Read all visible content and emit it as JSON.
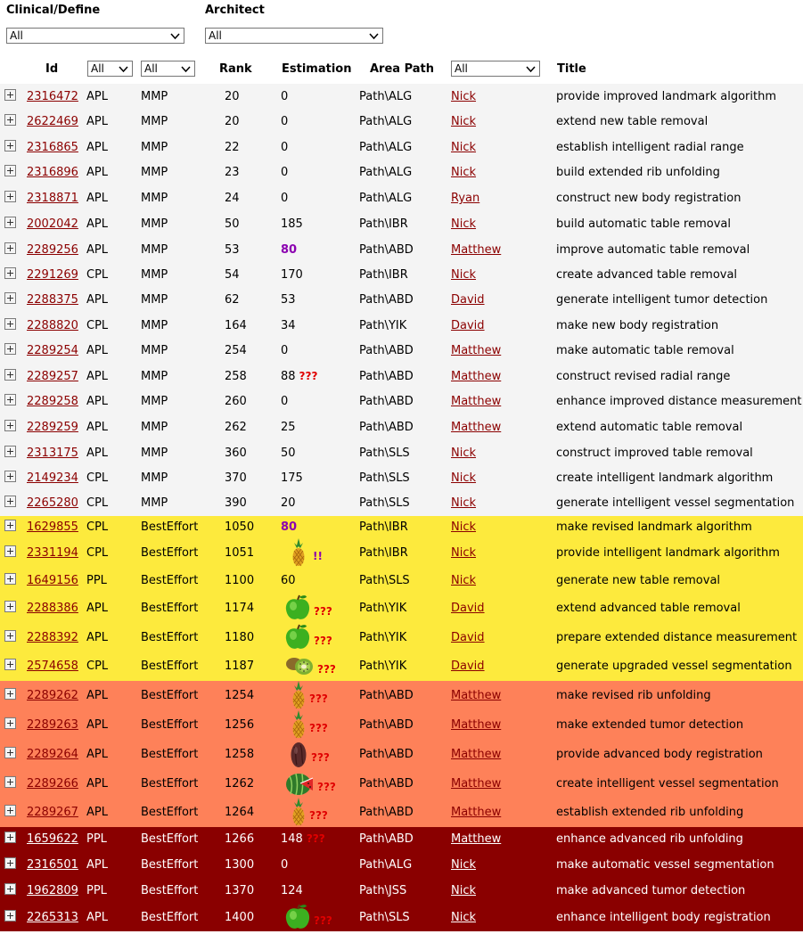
{
  "filters": {
    "clinical_label": "Clinical/Define",
    "clinical_value": "All",
    "architect_label": "Architect",
    "architect_value": "All",
    "group_value": "All",
    "type_value": "All",
    "arch_col_value": "All"
  },
  "columns": {
    "id": "Id",
    "rank": "Rank",
    "estimation": "Estimation",
    "area": "Area Path",
    "title": "Title"
  },
  "colors": {
    "gray": "#f4f4f4",
    "yellow": "#fdea3d",
    "orange": "#fe8159",
    "red": "#8a0000",
    "link": "#8b0000"
  },
  "rows": [
    {
      "id": "2316472",
      "grp": "APL",
      "type": "MMP",
      "rank": "20",
      "est": "0",
      "path": "Path\\ALG",
      "arch": "Nick",
      "title": "provide improved landmark algorithm",
      "band": "gray"
    },
    {
      "id": "2622469",
      "grp": "APL",
      "type": "MMP",
      "rank": "20",
      "est": "0",
      "path": "Path\\ALG",
      "arch": "Nick",
      "title": "extend new table removal",
      "band": "gray"
    },
    {
      "id": "2316865",
      "grp": "APL",
      "type": "MMP",
      "rank": "22",
      "est": "0",
      "path": "Path\\ALG",
      "arch": "Nick",
      "title": "establish intelligent radial range",
      "band": "gray"
    },
    {
      "id": "2316896",
      "grp": "APL",
      "type": "MMP",
      "rank": "23",
      "est": "0",
      "path": "Path\\ALG",
      "arch": "Nick",
      "title": "build extended rib unfolding",
      "band": "gray"
    },
    {
      "id": "2318871",
      "grp": "APL",
      "type": "MMP",
      "rank": "24",
      "est": "0",
      "path": "Path\\ALG",
      "arch": "Ryan",
      "title": "construct new body registration",
      "band": "gray"
    },
    {
      "id": "2002042",
      "grp": "APL",
      "type": "MMP",
      "rank": "50",
      "est": "185",
      "path": "Path\\IBR",
      "arch": "Nick",
      "title": "build automatic table removal",
      "band": "gray"
    },
    {
      "id": "2289256",
      "grp": "APL",
      "type": "MMP",
      "rank": "53",
      "est": "80",
      "est_style": "purple",
      "path": "Path\\ABD",
      "arch": "Matthew",
      "title": "improve automatic table removal",
      "band": "gray"
    },
    {
      "id": "2291269",
      "grp": "CPL",
      "type": "MMP",
      "rank": "54",
      "est": "170",
      "path": "Path\\IBR",
      "arch": "Nick",
      "title": "create advanced table removal",
      "band": "gray"
    },
    {
      "id": "2288375",
      "grp": "APL",
      "type": "MMP",
      "rank": "62",
      "est": "53",
      "path": "Path\\ABD",
      "arch": "David",
      "title": "generate intelligent tumor detection",
      "band": "gray"
    },
    {
      "id": "2288820",
      "grp": "CPL",
      "type": "MMP",
      "rank": "164",
      "est": "34",
      "path": "Path\\YIK",
      "arch": "David",
      "title": "make new body registration",
      "band": "gray"
    },
    {
      "id": "2289254",
      "grp": "APL",
      "type": "MMP",
      "rank": "254",
      "est": "0",
      "path": "Path\\ABD",
      "arch": "Matthew",
      "title": "make automatic table removal",
      "band": "gray"
    },
    {
      "id": "2289257",
      "grp": "APL",
      "type": "MMP",
      "rank": "258",
      "est": "88",
      "mark": "???",
      "path": "Path\\ABD",
      "arch": "Matthew",
      "title": "construct revised radial range",
      "band": "gray"
    },
    {
      "id": "2289258",
      "grp": "APL",
      "type": "MMP",
      "rank": "260",
      "est": "0",
      "path": "Path\\ABD",
      "arch": "Matthew",
      "title": "enhance improved distance measurement",
      "band": "gray"
    },
    {
      "id": "2289259",
      "grp": "APL",
      "type": "MMP",
      "rank": "262",
      "est": "25",
      "path": "Path\\ABD",
      "arch": "Matthew",
      "title": "extend automatic table removal",
      "band": "gray"
    },
    {
      "id": "2313175",
      "grp": "APL",
      "type": "MMP",
      "rank": "360",
      "est": "50",
      "path": "Path\\SLS",
      "arch": "Nick",
      "title": "construct improved table removal",
      "band": "gray"
    },
    {
      "id": "2149234",
      "grp": "CPL",
      "type": "MMP",
      "rank": "370",
      "est": "175",
      "path": "Path\\SLS",
      "arch": "Nick",
      "title": "create intelligent landmark algorithm",
      "band": "gray"
    },
    {
      "id": "2265280",
      "grp": "CPL",
      "type": "MMP",
      "rank": "390",
      "est": "20",
      "path": "Path\\SLS",
      "arch": "Nick",
      "title": "generate intelligent vessel segmentation",
      "band": "gray"
    },
    {
      "id": "1629855",
      "grp": "CPL",
      "type": "BestEffort",
      "rank": "1050",
      "est": "80",
      "est_style": "purple",
      "path": "Path\\IBR",
      "arch": "Nick",
      "title": "make revised landmark algorithm",
      "band": "yellow"
    },
    {
      "id": "2331194",
      "grp": "CPL",
      "type": "BestEffort",
      "rank": "1051",
      "est": "",
      "fruit": "pineapple",
      "mark": "!!",
      "mark_style": "purple",
      "path": "Path\\IBR",
      "arch": "Nick",
      "title": "provide intelligent landmark algorithm",
      "band": "yellow"
    },
    {
      "id": "1649156",
      "grp": "PPL",
      "type": "BestEffort",
      "rank": "1100",
      "est": "60",
      "path": "Path\\SLS",
      "arch": "Nick",
      "title": "generate new table removal",
      "band": "yellow"
    },
    {
      "id": "2288386",
      "grp": "APL",
      "type": "BestEffort",
      "rank": "1174",
      "est": "",
      "fruit": "apple",
      "mark": "???",
      "path": "Path\\YIK",
      "arch": "David",
      "title": "extend advanced table removal",
      "band": "yellow"
    },
    {
      "id": "2288392",
      "grp": "APL",
      "type": "BestEffort",
      "rank": "1180",
      "est": "",
      "fruit": "apple",
      "mark": "???",
      "path": "Path\\YIK",
      "arch": "David",
      "title": "prepare extended distance measurement",
      "band": "yellow"
    },
    {
      "id": "2574658",
      "grp": "CPL",
      "type": "BestEffort",
      "rank": "1187",
      "est": "",
      "fruit": "kiwi",
      "mark": "???",
      "path": "Path\\YIK",
      "arch": "David",
      "title": "generate upgraded vessel segmentation",
      "band": "yellow"
    },
    {
      "id": "2289262",
      "grp": "APL",
      "type": "BestEffort",
      "rank": "1254",
      "est": "",
      "fruit": "pineapple",
      "mark": "???",
      "path": "Path\\ABD",
      "arch": "Matthew",
      "title": "make revised rib unfolding",
      "band": "orange"
    },
    {
      "id": "2289263",
      "grp": "APL",
      "type": "BestEffort",
      "rank": "1256",
      "est": "",
      "fruit": "pineapple",
      "mark": "???",
      "path": "Path\\ABD",
      "arch": "Matthew",
      "title": "make extended tumor detection",
      "band": "orange"
    },
    {
      "id": "2289264",
      "grp": "APL",
      "type": "BestEffort",
      "rank": "1258",
      "est": "",
      "fruit": "date",
      "mark": "???",
      "path": "Path\\ABD",
      "arch": "Matthew",
      "title": "provide advanced body registration",
      "band": "orange"
    },
    {
      "id": "2289266",
      "grp": "APL",
      "type": "BestEffort",
      "rank": "1262",
      "est": "",
      "fruit": "watermelon",
      "mark": "???",
      "path": "Path\\ABD",
      "arch": "Matthew",
      "title": "create intelligent vessel segmentation",
      "band": "orange"
    },
    {
      "id": "2289267",
      "grp": "APL",
      "type": "BestEffort",
      "rank": "1264",
      "est": "",
      "fruit": "pineapple",
      "mark": "???",
      "path": "Path\\ABD",
      "arch": "Matthew",
      "title": "establish extended rib unfolding",
      "band": "orange"
    },
    {
      "id": "1659622",
      "grp": "PPL",
      "type": "BestEffort",
      "rank": "1266",
      "est": "148",
      "mark": "???",
      "path": "Path\\ABD",
      "arch": "Matthew",
      "title": "enhance advanced rib unfolding",
      "band": "red"
    },
    {
      "id": "2316501",
      "grp": "APL",
      "type": "BestEffort",
      "rank": "1300",
      "est": "0",
      "path": "Path\\ALG",
      "arch": "Nick",
      "title": "make automatic vessel segmentation",
      "band": "red"
    },
    {
      "id": "1962809",
      "grp": "PPL",
      "type": "BestEffort",
      "rank": "1370",
      "est": "124",
      "path": "Path\\JSS",
      "arch": "Nick",
      "title": "make advanced tumor detection",
      "band": "red"
    },
    {
      "id": "2265313",
      "grp": "APL",
      "type": "BestEffort",
      "rank": "1400",
      "est": "",
      "fruit": "apple",
      "mark": "???",
      "path": "Path\\SLS",
      "arch": "Nick",
      "title": "enhance intelligent body registration",
      "band": "red"
    }
  ]
}
